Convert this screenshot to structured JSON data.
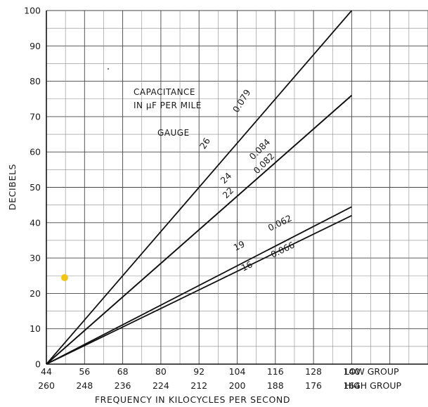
{
  "chart_data": {
    "type": "line",
    "ylabel": "DECIBELS",
    "xlabel": "FREQUENCY IN KILOCYCLES PER SECOND",
    "ylim": [
      0,
      100
    ],
    "yticks": [
      0,
      10,
      20,
      30,
      40,
      50,
      60,
      70,
      80,
      90,
      100
    ],
    "xlim": [
      44,
      164
    ],
    "x_low_group_ticks": [
      "44",
      "56",
      "68",
      "80",
      "92",
      "104",
      "116",
      "128",
      "140"
    ],
    "x_high_group_ticks": [
      "260",
      "248",
      "236",
      "224",
      "212",
      "200",
      "188",
      "176",
      "164"
    ],
    "low_group_label": "LOW GROUP",
    "high_group_label": "HIGH GROUP",
    "grid": true,
    "annotations": {
      "capacitance_line1": "CAPACITANCE",
      "capacitance_line2": "IN µF PER MILE",
      "gauge": "GAUGE"
    },
    "series": [
      {
        "gauge": "26",
        "capacitance": "0.079",
        "x": [
          44,
          140
        ],
        "y": [
          0,
          100
        ]
      },
      {
        "gauge": "24",
        "capacitance": "0.084",
        "x": [
          44,
          140
        ],
        "y": [
          0,
          76
        ]
      },
      {
        "gauge": "22",
        "capacitance": "0.082",
        "x": [
          44,
          140
        ],
        "y": [
          0,
          76
        ]
      },
      {
        "gauge": "19",
        "capacitance": "0.062",
        "x": [
          44,
          140
        ],
        "y": [
          0,
          44.5
        ]
      },
      {
        "gauge": "16",
        "capacitance": "0.066",
        "x": [
          44,
          140
        ],
        "y": [
          0,
          42
        ]
      }
    ]
  }
}
